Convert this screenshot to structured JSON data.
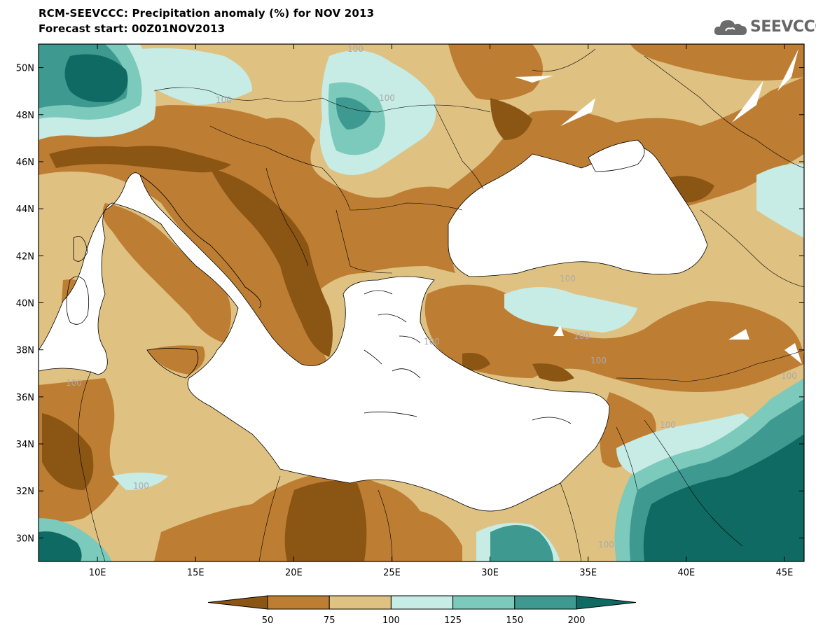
{
  "header": {
    "title": "RCM-SEEVCCC: Precipitation anomaly (%) for NOV 2013",
    "subtitle": "Forecast start: 00Z01NOV2013"
  },
  "logo": {
    "text": "SEEVCCC",
    "icon": "cloud-logo-icon",
    "color": "#6b6b6b"
  },
  "map": {
    "lon_range": [
      7,
      46
    ],
    "lat_range": [
      29,
      51
    ],
    "lon_ticks": [
      "10E",
      "15E",
      "20E",
      "25E",
      "30E",
      "35E",
      "40E",
      "45E"
    ],
    "lat_ticks": [
      "50N",
      "48N",
      "46N",
      "44N",
      "42N",
      "40N",
      "38N",
      "36N",
      "34N",
      "32N",
      "30N"
    ],
    "contour_labels": [
      "100",
      "100",
      "100",
      "100",
      "100",
      "100",
      "100",
      "100",
      "100",
      "100",
      "100",
      "100"
    ]
  },
  "colorbar": {
    "colors": [
      "#8b5514",
      "#bd7d33",
      "#dfc182",
      "#c6ece5",
      "#7ccabc",
      "#3e9a90",
      "#0e6a62"
    ],
    "labels": [
      "50",
      "75",
      "100",
      "125",
      "150",
      "200"
    ]
  }
}
